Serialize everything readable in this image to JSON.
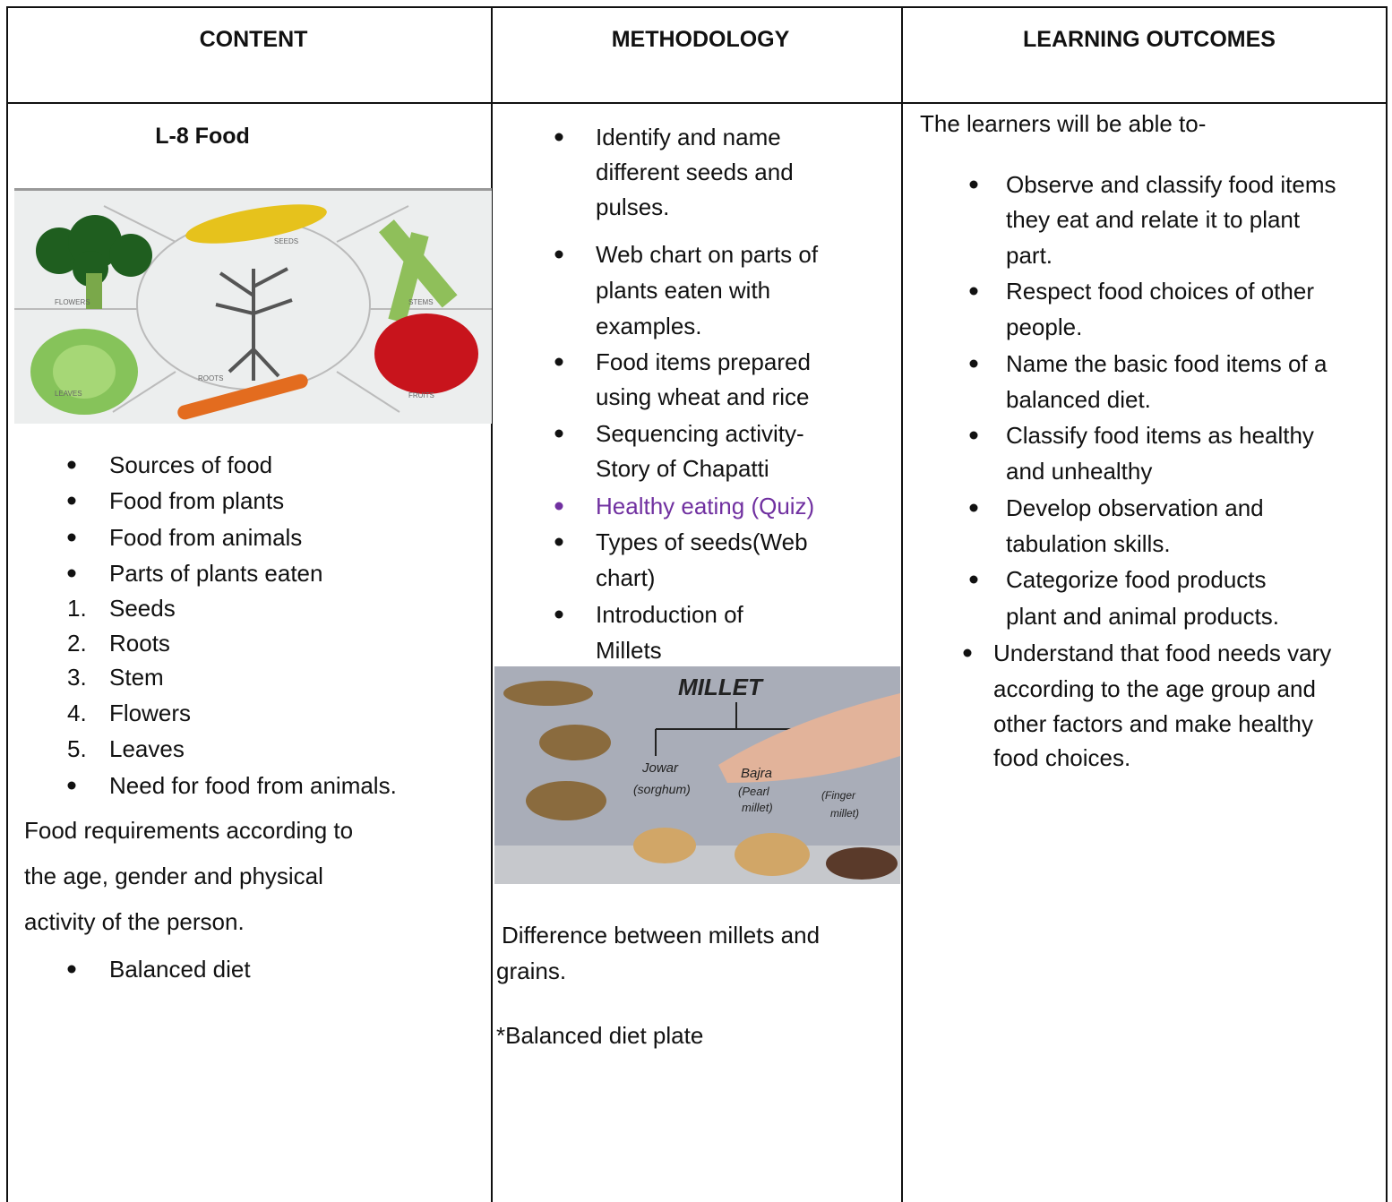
{
  "header": {
    "columns": [
      "CONTENT",
      "METHODOLOGY",
      "LEARNING OUTCOMES"
    ]
  },
  "content": {
    "title": "L-8 Food",
    "image_labels": [
      "SEEDS",
      "FLOWERS",
      "STEMS",
      "LEAVES",
      "ROOTS",
      "FRUITS"
    ],
    "bullets": [
      "Sources of food",
      "Food from plants",
      "Food from animals",
      "Parts of plants eaten"
    ],
    "numbered": [
      {
        "number": "1.",
        "text": "Seeds"
      },
      {
        "number": "2.",
        "text": "Roots"
      },
      {
        "number": "3.",
        "text": "Stem"
      },
      {
        "number": "4.",
        "text": "Flowers"
      },
      {
        "number": "5.",
        "text": "Leaves"
      }
    ],
    "bullet_after": "Need for food from animals.",
    "paragraph": [
      "Food requirements according to",
      "the age, gender and physical",
      "activity of the person."
    ],
    "last_bullet": "Balanced diet"
  },
  "methodology": {
    "items": [
      [
        "Identify and name",
        "different seeds and",
        "pulses."
      ],
      [
        "Web chart on parts of",
        "plants eaten with",
        "examples."
      ],
      [
        "Food items prepared",
        "using wheat and rice"
      ],
      [
        "Sequencing activity-",
        "Story of Chapatti"
      ],
      [
        "Healthy eating (Quiz)"
      ],
      [
        "Types of seeds(Web",
        "chart)"
      ],
      [
        "Introduction of",
        "Millets"
      ]
    ],
    "image_labels": [
      "MILLET",
      "Jowar",
      "(sorghum)",
      "Bajra",
      "(Pearl",
      "millet)",
      "(Finger",
      "millet)"
    ],
    "difference": [
      "Difference between millets and",
      "grains."
    ],
    "note": "*Balanced diet plate"
  },
  "outcomes": {
    "intro": "The learners will be able to-",
    "items": [
      [
        "Observe and classify food items",
        "they eat and relate it to plant",
        "part."
      ],
      [
        "Respect food choices of other",
        "people."
      ],
      [
        "Name the basic food items of a",
        "balanced diet."
      ],
      [
        "Classify food items as healthy",
        "and unhealthy"
      ],
      [
        "Develop observation and",
        "tabulation skills."
      ],
      [
        "Categorize food products",
        "plant and animal products."
      ],
      [
        "Understand that food needs vary",
        "according to the age group and",
        "other factors and make healthy",
        "food choices."
      ]
    ]
  }
}
